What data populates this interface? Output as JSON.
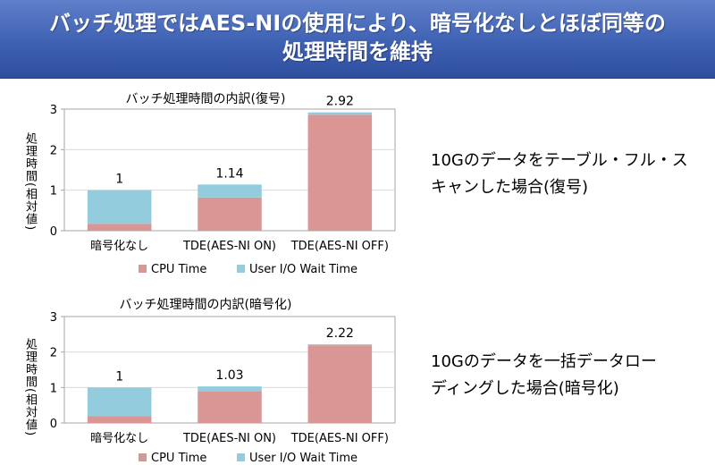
{
  "banner": {
    "line1": "バッチ処理ではAES-NIの使用により、暗号化なしとほぼ同等の",
    "line2": "処理時間を維持"
  },
  "colors": {
    "cpu": "#d99694",
    "io": "#93cddd",
    "grid": "#d9d9d9",
    "axis": "#a6a6a6"
  },
  "chart_data": [
    {
      "type": "bar",
      "stacked": true,
      "title": "バッチ処理時間の内訳(復号)",
      "ylabel": "処理時間(相対値)",
      "ylim": [
        0,
        3
      ],
      "yticks": [
        "0",
        "1",
        "2",
        "3"
      ],
      "categories": [
        "暗号化なし",
        "TDE(AES-NI ON)",
        "TDE(AES-NI OFF)"
      ],
      "series": [
        {
          "name": "CPU Time",
          "values": [
            0.17,
            0.82,
            2.86
          ]
        },
        {
          "name": "User I/O Wait Time",
          "values": [
            0.83,
            0.32,
            0.06
          ]
        }
      ],
      "totals": [
        "1",
        "1.14",
        "2.92"
      ],
      "legend": "bottom",
      "grid": true
    },
    {
      "type": "bar",
      "stacked": true,
      "title": "バッチ処理時間の内訳(暗号化)",
      "ylabel": "処理時間(相対値)",
      "ylim": [
        0,
        3
      ],
      "yticks": [
        "0",
        "1",
        "2",
        "3"
      ],
      "categories": [
        "暗号化なし",
        "TDE(AES-NI ON)",
        "TDE(AES-NI OFF)"
      ],
      "series": [
        {
          "name": "CPU Time",
          "values": [
            0.19,
            0.9,
            2.19
          ]
        },
        {
          "name": "User I/O Wait Time",
          "values": [
            0.81,
            0.13,
            0.03
          ]
        }
      ],
      "totals": [
        "1",
        "1.03",
        "2.22"
      ],
      "legend": "bottom",
      "grid": true
    }
  ],
  "notes": [
    {
      "line1": "10Gのデータをテーブル・フル・ス",
      "line2": "キャンした場合(復号)"
    },
    {
      "line1": "10Gのデータを一括データロー",
      "line2": "ディングした場合(暗号化)"
    }
  ]
}
